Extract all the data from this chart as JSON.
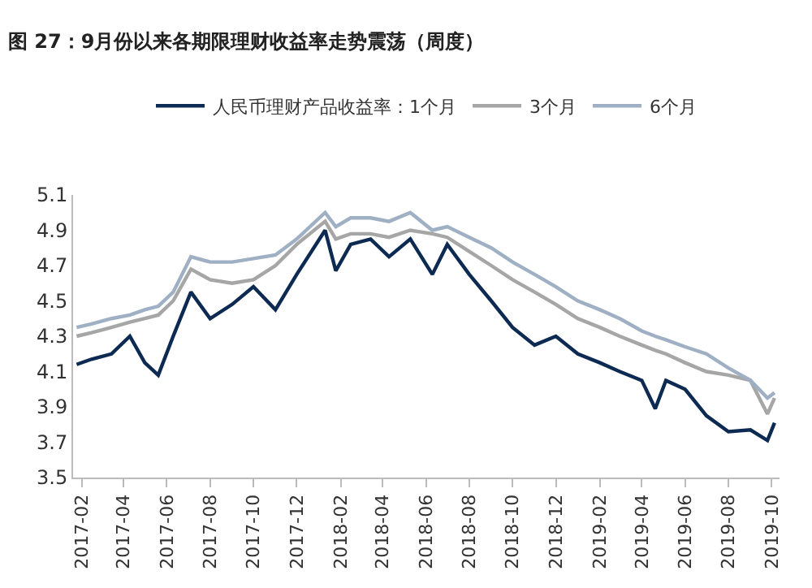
{
  "chart_data": {
    "type": "line",
    "title": "图 27：9月份以来各期限理财收益率走势震荡（周度）",
    "x": [
      "2017-01-25",
      "2017-02-15",
      "2017-03-15",
      "2017-04-10",
      "2017-05-01",
      "2017-05-20",
      "2017-06-10",
      "2017-07-05",
      "2017-08-01",
      "2017-09-01",
      "2017-10-01",
      "2017-11-01",
      "2017-12-01",
      "2018-01-10",
      "2018-01-25",
      "2018-02-15",
      "2018-03-15",
      "2018-04-10",
      "2018-05-10",
      "2018-06-10",
      "2018-07-01",
      "2018-08-01",
      "2018-09-01",
      "2018-10-01",
      "2018-11-01",
      "2018-12-01",
      "2019-01-01",
      "2019-02-01",
      "2019-03-01",
      "2019-04-01",
      "2019-04-20",
      "2019-05-05",
      "2019-06-01",
      "2019-07-01",
      "2019-08-01",
      "2019-09-01",
      "2019-09-25",
      "2019-10-05"
    ],
    "series": [
      {
        "name": "人民币理财产品收益率：1个月",
        "color": "#0d2a52",
        "values": [
          4.14,
          4.17,
          4.2,
          4.3,
          4.15,
          4.08,
          4.3,
          4.55,
          4.4,
          4.48,
          4.58,
          4.45,
          4.65,
          4.9,
          4.67,
          4.82,
          4.85,
          4.75,
          4.85,
          4.65,
          4.82,
          4.65,
          4.5,
          4.35,
          4.25,
          4.3,
          4.2,
          4.15,
          4.1,
          4.05,
          3.89,
          4.05,
          4.0,
          3.85,
          3.76,
          3.77,
          3.71,
          3.81
        ]
      },
      {
        "name": "3个月",
        "color": "#a6a6a6",
        "values": [
          4.3,
          4.32,
          4.35,
          4.38,
          4.4,
          4.42,
          4.5,
          4.68,
          4.62,
          4.6,
          4.62,
          4.7,
          4.82,
          4.95,
          4.85,
          4.88,
          4.88,
          4.86,
          4.9,
          4.88,
          4.86,
          4.78,
          4.7,
          4.62,
          4.55,
          4.48,
          4.4,
          4.35,
          4.3,
          4.25,
          4.22,
          4.2,
          4.15,
          4.1,
          4.08,
          4.05,
          3.86,
          3.95
        ]
      },
      {
        "name": "6个月",
        "color": "#9fb0c4",
        "values": [
          4.35,
          4.37,
          4.4,
          4.42,
          4.45,
          4.47,
          4.55,
          4.75,
          4.72,
          4.72,
          4.74,
          4.76,
          4.85,
          5.0,
          4.92,
          4.97,
          4.97,
          4.95,
          5.0,
          4.9,
          4.92,
          4.86,
          4.8,
          4.72,
          4.65,
          4.58,
          4.5,
          4.45,
          4.4,
          4.33,
          4.3,
          4.28,
          4.24,
          4.2,
          4.12,
          4.05,
          3.95,
          3.98
        ]
      }
    ],
    "ylim": [
      3.5,
      5.1
    ],
    "yticks": [
      3.5,
      3.7,
      3.9,
      4.1,
      4.3,
      4.5,
      4.7,
      4.9,
      5.1
    ],
    "xlim": [
      "2017-01-20",
      "2019-10-12"
    ],
    "xticks": [
      "2017-02",
      "2017-04",
      "2017-06",
      "2017-08",
      "2017-10",
      "2017-12",
      "2018-02",
      "2018-04",
      "2018-06",
      "2018-08",
      "2018-10",
      "2018-12",
      "2019-02",
      "2019-04",
      "2019-06",
      "2019-08",
      "2019-10"
    ],
    "legend": "top",
    "marker": "none",
    "line_style": "solid"
  }
}
